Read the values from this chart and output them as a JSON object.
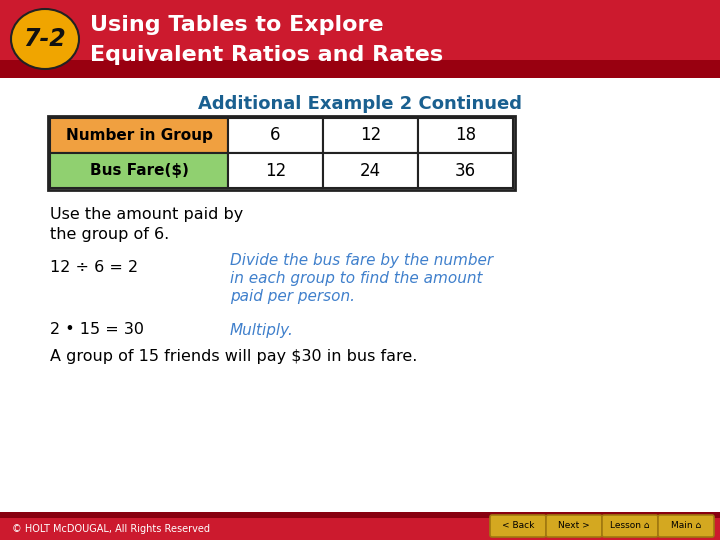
{
  "header_bg": "#cc1a2e",
  "header_number_bg": "#f0a500",
  "header_number_text": "7-2",
  "header_title_line1": "Using Tables to Explore",
  "header_title_line2": "Equivalent Ratios and Rates",
  "header_text_color": "#ffffff",
  "subtitle": "Additional Example 2 Continued",
  "subtitle_color": "#1a6090",
  "table_row1_label": "Number in Group",
  "table_row2_label": "Bus Fare($)",
  "table_row1_bg": "#f0a040",
  "table_row2_bg": "#90d070",
  "table_values_row1": [
    "6",
    "12",
    "18"
  ],
  "table_values_row2": [
    "12",
    "24",
    "36"
  ],
  "table_border_color": "#222222",
  "body_text_color": "#000000",
  "italic_text_color": "#4080cc",
  "text1_line1": "Use the amount paid by",
  "text1_line2": "the group of 6.",
  "text2_left": "12 ÷ 6 = 2",
  "text2_right_line1": "Divide the bus fare by the number",
  "text2_right_line2": "in each group to find the amount",
  "text2_right_line3": "paid per person.",
  "text3_left": "2 • 15 = 30",
  "text3_right": "Multiply.",
  "text4": "A group of 15 friends will pay $30 in bus fare.",
  "footer_bg": "#cc1a2e",
  "footer_text": "© HOLT McDOUGAL, All Rights Reserved",
  "footer_text_color": "#ffffff",
  "bg_color": "#ffffff",
  "btn_labels": [
    "< Back",
    "Next >",
    "Lesson",
    "Main"
  ],
  "btn_bg": "#d4a820",
  "btn_border": "#a07810"
}
